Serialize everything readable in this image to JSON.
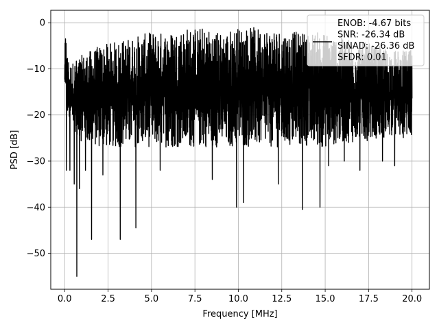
{
  "chart_data": {
    "type": "line",
    "xlabel": "Frequency [MHz]",
    "ylabel": "PSD [dB]",
    "xlim": [
      -0.8,
      21.0
    ],
    "ylim": [
      -57.8,
      2.7
    ],
    "x_ticks": [
      0.0,
      2.5,
      5.0,
      7.5,
      10.0,
      12.5,
      15.0,
      17.5,
      20.0
    ],
    "x_tick_labels": [
      "0.0",
      "2.5",
      "5.0",
      "7.5",
      "10.0",
      "12.5",
      "15.0",
      "17.5",
      "20.0"
    ],
    "y_ticks": [
      0,
      -10,
      -20,
      -30,
      -40,
      -50
    ],
    "y_tick_labels": [
      "0",
      "−10",
      "−20",
      "−30",
      "−40",
      "−50"
    ],
    "grid": true,
    "legend_position": "top-right",
    "legend_lines": [
      "ENOB: -4.67 bits",
      "SNR: -26.34 dB",
      "SINAD: -26.36 dB",
      "SFDR: 0.01"
    ],
    "series": [
      {
        "color": "#000000",
        "x_range": [
          0.0,
          20.0
        ],
        "band_upper": [
          [
            0.0,
            -4
          ],
          [
            0.3,
            -9
          ],
          [
            1.0,
            -7
          ],
          [
            2.0,
            -5
          ],
          [
            3.0,
            -4
          ],
          [
            4.0,
            -3
          ],
          [
            5.0,
            -2
          ],
          [
            6.0,
            -2
          ],
          [
            7.0,
            -1
          ],
          [
            8.0,
            -1
          ],
          [
            9.0,
            -2
          ],
          [
            10.0,
            -1
          ],
          [
            11.0,
            -1
          ],
          [
            12.0,
            -1
          ],
          [
            13.0,
            -2
          ],
          [
            14.0,
            -2
          ],
          [
            15.0,
            -2
          ],
          [
            16.0,
            -3
          ],
          [
            17.0,
            -4
          ],
          [
            18.0,
            -5
          ],
          [
            19.0,
            -6
          ],
          [
            20.0,
            -6
          ]
        ],
        "band_lower": [
          [
            0.0,
            -17
          ],
          [
            0.3,
            -22
          ],
          [
            1.0,
            -26
          ],
          [
            2.0,
            -27
          ],
          [
            3.0,
            -27
          ],
          [
            4.0,
            -27
          ],
          [
            5.0,
            -27
          ],
          [
            6.0,
            -27
          ],
          [
            7.0,
            -27
          ],
          [
            8.0,
            -27
          ],
          [
            9.0,
            -27
          ],
          [
            10.0,
            -27
          ],
          [
            11.0,
            -27
          ],
          [
            12.0,
            -27
          ],
          [
            13.0,
            -27
          ],
          [
            14.0,
            -27
          ],
          [
            15.0,
            -27
          ],
          [
            16.0,
            -26
          ],
          [
            17.0,
            -26
          ],
          [
            18.0,
            -25
          ],
          [
            19.0,
            -25
          ],
          [
            20.0,
            -25
          ]
        ],
        "peaks": [
          [
            0.05,
            -3.5
          ],
          [
            0.08,
            -4.5
          ]
        ],
        "dips": [
          [
            0.1,
            -32
          ],
          [
            0.3,
            -32
          ],
          [
            0.55,
            -35
          ],
          [
            0.7,
            -55
          ],
          [
            0.85,
            -36
          ],
          [
            1.2,
            -32
          ],
          [
            1.55,
            -47
          ],
          [
            2.2,
            -33
          ],
          [
            3.2,
            -47
          ],
          [
            4.1,
            -44.5
          ],
          [
            5.5,
            -32
          ],
          [
            8.5,
            -34
          ],
          [
            9.9,
            -40
          ],
          [
            10.3,
            -39
          ],
          [
            12.3,
            -35
          ],
          [
            13.7,
            -40.5
          ],
          [
            14.7,
            -40
          ],
          [
            15.2,
            -31
          ],
          [
            16.1,
            -30
          ],
          [
            17.0,
            -32
          ],
          [
            18.3,
            -30
          ],
          [
            19.0,
            -31
          ]
        ]
      }
    ]
  }
}
